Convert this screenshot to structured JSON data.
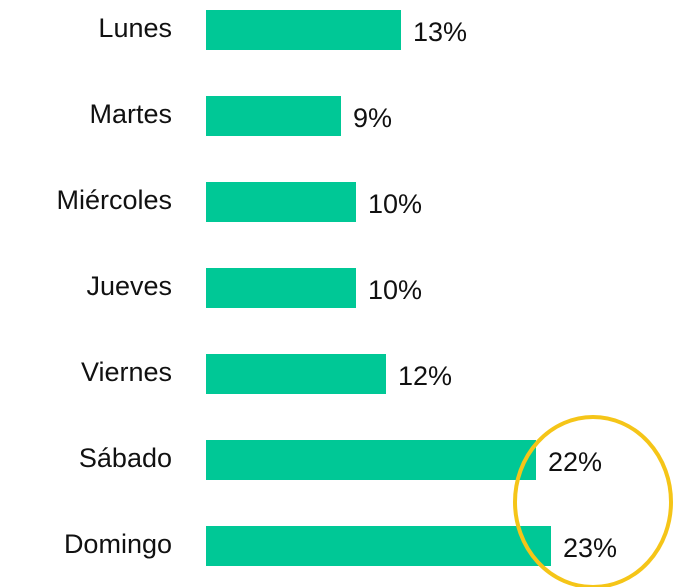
{
  "chart_data": {
    "type": "bar",
    "orientation": "horizontal",
    "categories": [
      "Lunes",
      "Martes",
      "Miércoles",
      "Jueves",
      "Viernes",
      "Sábado",
      "Domingo"
    ],
    "values": [
      13,
      9,
      10,
      10,
      12,
      22,
      23
    ],
    "value_labels": [
      "13%",
      "9%",
      "10%",
      "10%",
      "12%",
      "22%",
      "23%"
    ],
    "color": "#00c896"
  }
}
